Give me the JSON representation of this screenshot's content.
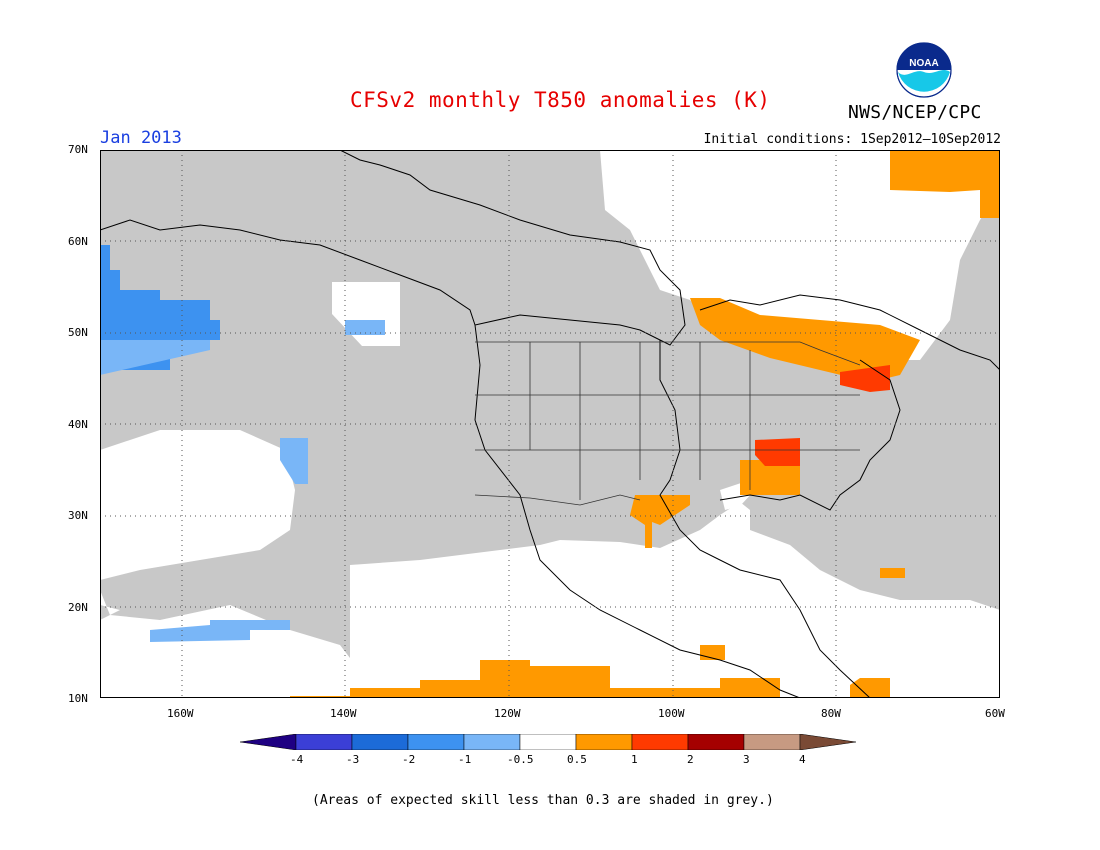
{
  "header": {
    "title": "CFSv2 monthly T850 anomalies (K)",
    "organization": "NWS/NCEP/CPC",
    "valid_month": "Jan 2013",
    "initial_conditions": "Initial conditions: 1Sep2012–10Sep2012"
  },
  "logo": {
    "icon": "noaa-logo-icon",
    "text": "NOAA"
  },
  "map": {
    "lat_labels": [
      "70N",
      "60N",
      "50N",
      "40N",
      "30N",
      "20N",
      "10N"
    ],
    "lon_labels": [
      "160W",
      "140W",
      "120W",
      "100W",
      "80W",
      "60W"
    ],
    "lat_range": [
      10,
      70
    ],
    "lon_range": [
      -170,
      -60
    ],
    "gridlines": "dotted"
  },
  "colorbar": {
    "ticks": [
      "-4",
      "-3",
      "-2",
      "-1",
      "-0.5",
      "0.5",
      "1",
      "2",
      "3",
      "4"
    ],
    "colors": [
      "#1e0082",
      "#3b3fd6",
      "#1c6bd8",
      "#3d92f0",
      "#79b6f7",
      "#ffffff",
      "#ff9900",
      "#ff3a00",
      "#a50000",
      "#c79a82",
      "#7a4a35"
    ]
  },
  "legend_colors": {
    "low_skill": "#c8c8c8",
    "neutral": "#ffffff",
    "warm_0_5_1": "#ff9900",
    "warm_1_2": "#ff3a00",
    "cool_minus1_minus0_5": "#79b6f7",
    "cool_minus2_minus1": "#3d92f0"
  },
  "footnote": "(Areas of expected skill less than 0.3 are shaded in grey.)"
}
